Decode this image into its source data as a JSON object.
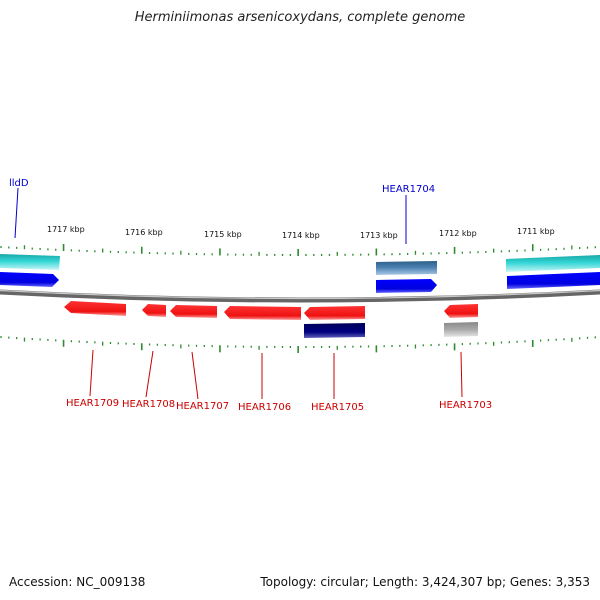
{
  "title": "Herminiimonas arsenicoxydans, complete genome",
  "footer": {
    "accession": "Accession: NC_009138",
    "summary": "Topology: circular; Length: 3,424,307 bp; Genes: 3,353"
  },
  "colors": {
    "background": "#ffffff",
    "backbone": "#888888",
    "tick": "#2e8b2e",
    "forward_label": "#0000cc",
    "reverse_label": "#cc0000",
    "cyan": "#33cccc",
    "blue": "#0000ee",
    "steel": "#4a7fb0",
    "red": "#ee1111",
    "navy": "#000080",
    "gray": "#aaaaaa"
  },
  "scale": {
    "unit": "kbp",
    "tick_labels": [
      "1717 kbp",
      "1716 kbp",
      "1715 kbp",
      "1714 kbp",
      "1713 kbp",
      "1712 kbp",
      "1711 kbp"
    ]
  },
  "features": {
    "forward": [
      {
        "name": "lldD",
        "color": "cyan",
        "track": "upper"
      },
      {
        "name": "",
        "color": "blue",
        "track": "lower"
      },
      {
        "name": "HEAR1704",
        "color": "steel",
        "track": "upper"
      },
      {
        "name": "",
        "color": "blue",
        "track": "lower"
      },
      {
        "name": "",
        "color": "cyan",
        "track": "upper"
      },
      {
        "name": "",
        "color": "blue",
        "track": "lower"
      }
    ],
    "reverse": [
      {
        "name": "HEAR1709",
        "color": "red",
        "track": "upper"
      },
      {
        "name": "HEAR1708",
        "color": "red",
        "track": "upper"
      },
      {
        "name": "HEAR1707",
        "color": "red",
        "track": "upper"
      },
      {
        "name": "HEAR1706",
        "color": "red",
        "track": "upper"
      },
      {
        "name": "HEAR1705",
        "color": "red",
        "track": "upper"
      },
      {
        "name": "",
        "color": "navy",
        "track": "lower"
      },
      {
        "name": "HEAR1703",
        "color": "red",
        "track": "upper"
      },
      {
        "name": "",
        "color": "gray",
        "track": "lower"
      }
    ]
  }
}
